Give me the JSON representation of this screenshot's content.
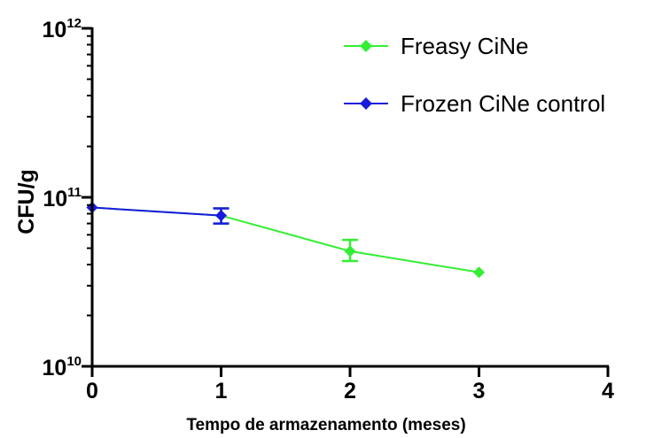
{
  "chart_data": {
    "type": "line",
    "title": "",
    "xlabel": "Tempo de armazenamento (meses)",
    "ylabel": "CFU/g",
    "y_scale": "log",
    "xlim": [
      0,
      4
    ],
    "ylim": [
      10000000000,
      1000000000000
    ],
    "x_ticks": [
      0,
      1,
      2,
      3,
      4
    ],
    "x_tick_labels": [
      "0",
      "1",
      "2",
      "3",
      "4"
    ],
    "y_ticks": [
      {
        "value": 10000000000,
        "base": "10",
        "exp": "10"
      },
      {
        "value": 100000000000,
        "base": "10",
        "exp": "11"
      },
      {
        "value": 1000000000000,
        "base": "10",
        "exp": "12"
      }
    ],
    "grid": false,
    "legend_position": "top-right",
    "series": [
      {
        "name": "Freasy CiNe",
        "color": "#33ee33",
        "marker": "diamond",
        "points": [
          {
            "x": 0,
            "y": 87000000000,
            "err_low": null,
            "err_high": null
          },
          {
            "x": 1,
            "y": 78000000000,
            "err_low": 70000000000,
            "err_high": 86000000000
          },
          {
            "x": 2,
            "y": 48000000000,
            "err_low": 42000000000,
            "err_high": 56000000000
          },
          {
            "x": 3,
            "y": 36000000000,
            "err_low": null,
            "err_high": null
          }
        ]
      },
      {
        "name": "Frozen CiNe control",
        "color": "#1a1adf",
        "marker": "diamond",
        "points": [
          {
            "x": 0,
            "y": 87000000000,
            "err_low": null,
            "err_high": null
          },
          {
            "x": 1,
            "y": 78000000000,
            "err_low": 70000000000,
            "err_high": 86000000000
          }
        ]
      }
    ]
  }
}
